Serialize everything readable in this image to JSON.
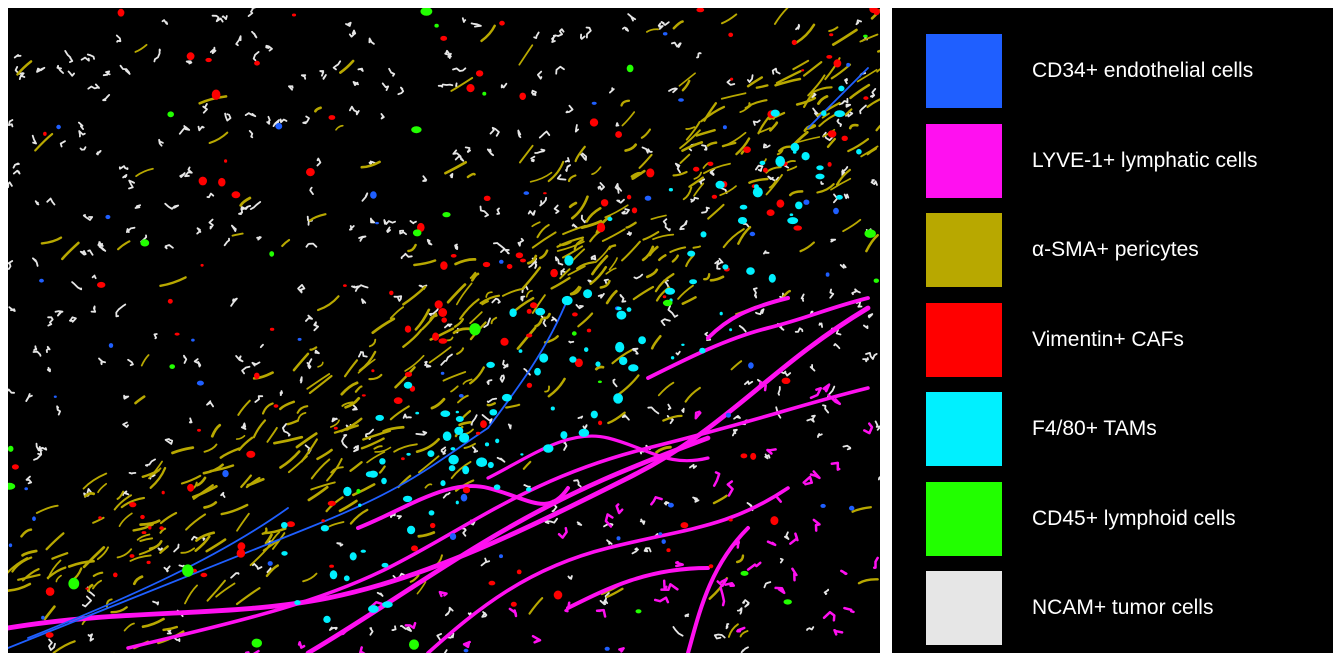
{
  "legend": {
    "items": [
      {
        "label": "CD34+ endothelial cells",
        "color": "#1f5fff"
      },
      {
        "label": "LYVE-1+ lymphatic cells",
        "color": "#ff10f0"
      },
      {
        "label": "α-SMA+ pericytes",
        "color": "#b8a800"
      },
      {
        "label": "Vimentin+ CAFs",
        "color": "#ff0000"
      },
      {
        "label": "F4/80+ TAMs",
        "color": "#00f0ff"
      },
      {
        "label": "CD45+ lymphoid cells",
        "color": "#22ff00"
      },
      {
        "label": "NCAM+ tumor cells",
        "color": "#e6e6e6"
      }
    ]
  }
}
